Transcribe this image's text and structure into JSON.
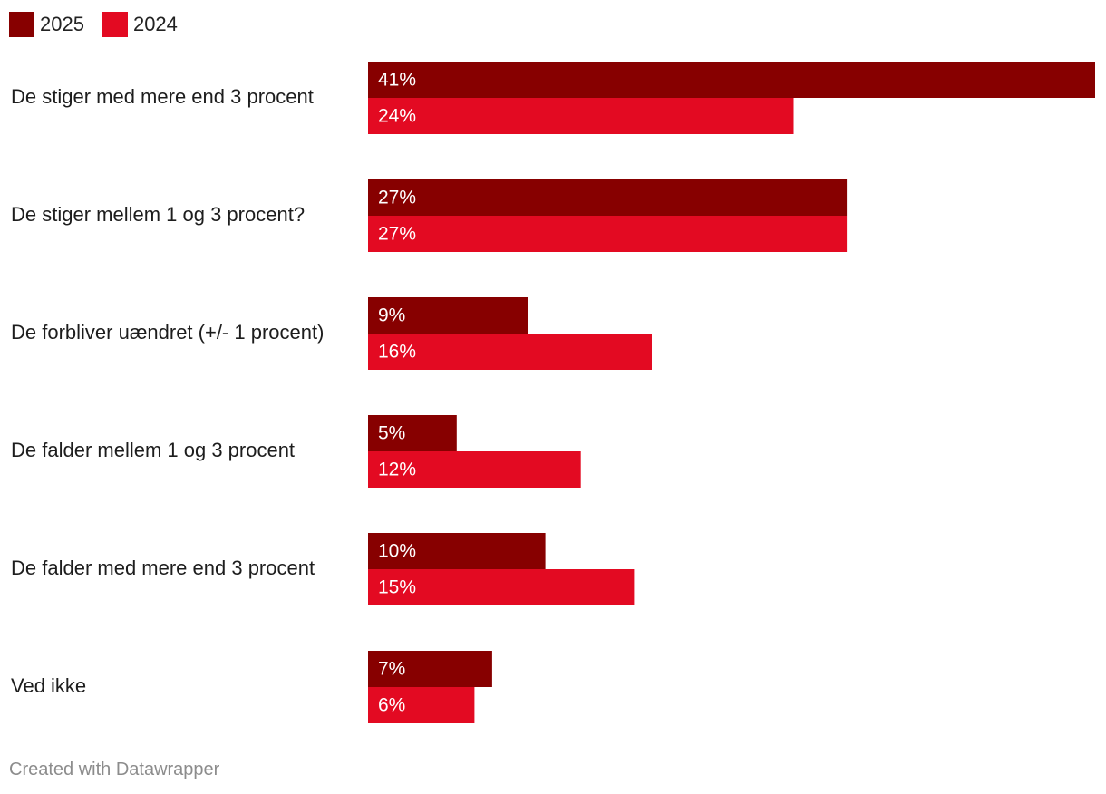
{
  "chart_data": {
    "type": "bar",
    "orientation": "horizontal",
    "categories": [
      "De stiger med mere end 3 procent",
      "De stiger mellem 1 og 3 procent?",
      "De forbliver uændret (+/- 1 procent)",
      "De falder mellem 1 og 3 procent",
      "De falder med mere end 3 procent",
      "Ved ikke"
    ],
    "series": [
      {
        "name": "2025",
        "color": "#870000",
        "values": [
          41,
          27,
          9,
          5,
          10,
          7
        ]
      },
      {
        "name": "2024",
        "color": "#e30a22",
        "values": [
          24,
          27,
          16,
          12,
          15,
          6
        ]
      }
    ],
    "value_suffix": "%",
    "xlim": [
      0,
      41
    ],
    "legend_position": "top-left",
    "grid": false
  },
  "footer": {
    "credit": "Created with Datawrapper"
  }
}
